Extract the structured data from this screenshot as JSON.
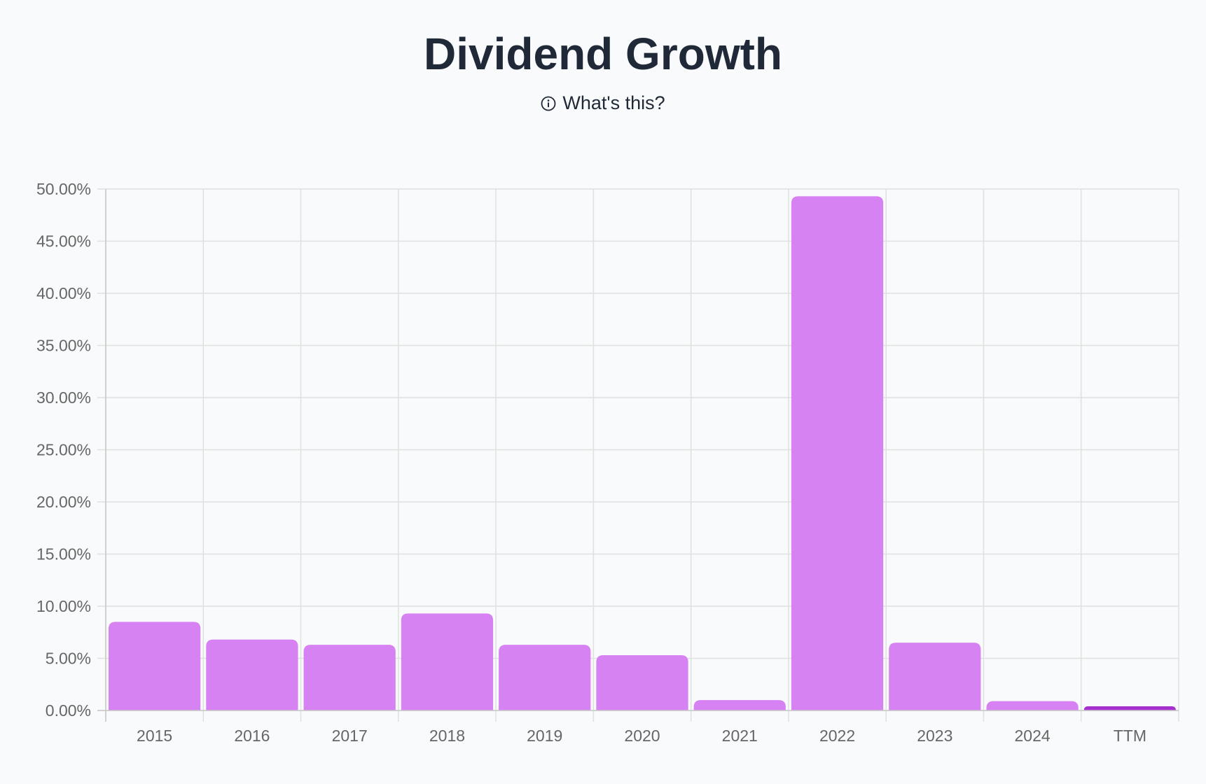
{
  "header": {
    "title": "Dividend Growth",
    "help_label": "What's this?"
  },
  "colors": {
    "bar": "#d682f2",
    "bar_highlight": "#a52fcf",
    "grid": "#e0e0e0",
    "axis_text": "#666666"
  },
  "chart_data": {
    "type": "bar",
    "title": "Dividend Growth",
    "xlabel": "",
    "ylabel": "",
    "categories": [
      "2015",
      "2016",
      "2017",
      "2018",
      "2019",
      "2020",
      "2021",
      "2022",
      "2023",
      "2024",
      "TTM"
    ],
    "values": [
      8.5,
      6.8,
      6.3,
      9.3,
      6.3,
      5.3,
      1.0,
      49.3,
      6.5,
      0.9,
      0.4
    ],
    "highlight_index": 10,
    "ylim": [
      0,
      50
    ],
    "yticks": [
      0,
      5,
      10,
      15,
      20,
      25,
      30,
      35,
      40,
      45,
      50
    ],
    "ytick_labels": [
      "0.00%",
      "5.00%",
      "10.00%",
      "15.00%",
      "20.00%",
      "25.00%",
      "30.00%",
      "35.00%",
      "40.00%",
      "45.00%",
      "50.00%"
    ],
    "grid": true,
    "legend": "none"
  }
}
